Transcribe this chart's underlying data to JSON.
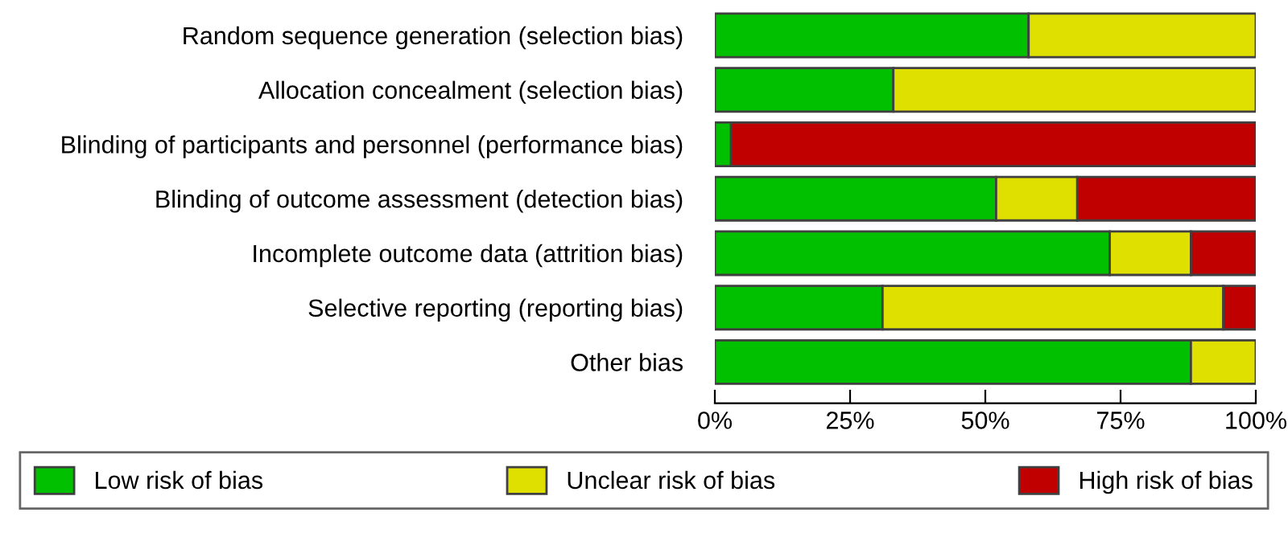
{
  "chart_data": {
    "type": "bar",
    "orientation": "horizontal",
    "stacked": true,
    "categories": [
      "Random sequence generation (selection bias)",
      "Allocation concealment (selection bias)",
      "Blinding of participants and personnel (performance bias)",
      "Blinding of outcome assessment (detection bias)",
      "Incomplete outcome data (attrition bias)",
      "Selective reporting (reporting bias)",
      "Other bias"
    ],
    "series": [
      {
        "name": "Low risk of bias",
        "color": "#00c000",
        "values": [
          58,
          33,
          3,
          52,
          73,
          31,
          88
        ]
      },
      {
        "name": "Unclear risk of bias",
        "color": "#e0e000",
        "values": [
          42,
          67,
          0,
          15,
          15,
          63,
          12
        ]
      },
      {
        "name": "High risk of bias",
        "color": "#c00000",
        "values": [
          0,
          0,
          97,
          33,
          12,
          6,
          0
        ]
      }
    ],
    "xlim": [
      0,
      100
    ],
    "xticks": [
      {
        "value": 0,
        "label": "0%"
      },
      {
        "value": 25,
        "label": "25%"
      },
      {
        "value": 50,
        "label": "50%"
      },
      {
        "value": 75,
        "label": "75%"
      },
      {
        "value": 100,
        "label": "100%"
      }
    ],
    "grid": false,
    "legend": "bottom"
  }
}
